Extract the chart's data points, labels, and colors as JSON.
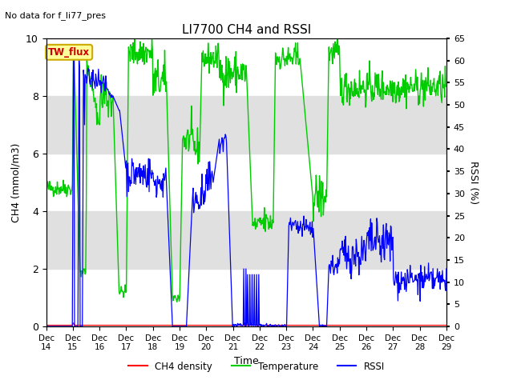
{
  "title": "LI7700 CH4 and RSSI",
  "subtitle": "No data for f_li77_pres",
  "xlabel": "Time",
  "ylabel_left": "CH4 (mmol/m3)",
  "ylabel_right": "RSSI (%)",
  "xlim": [
    0,
    15
  ],
  "ylim_left": [
    0,
    10
  ],
  "ylim_right": [
    0,
    65
  ],
  "yticks_left": [
    0,
    2,
    4,
    6,
    8,
    10
  ],
  "yticks_right": [
    0,
    5,
    10,
    15,
    20,
    25,
    30,
    35,
    40,
    45,
    50,
    55,
    60,
    65
  ],
  "xtick_labels": [
    "Dec 14",
    "Dec 15",
    "Dec 16",
    "Dec 17",
    "Dec 18",
    "Dec 19",
    "Dec 20",
    "Dec 21",
    "Dec 22",
    "Dec 23",
    "Dec 24",
    "Dec 25",
    "Dec 26",
    "Dec 27",
    "Dec 28",
    "Dec 29"
  ],
  "bg_band_color": "#e0e0e0",
  "legend_entries": [
    "CH4 density",
    "Temperature",
    "RSSI"
  ],
  "legend_colors": [
    "#ff0000",
    "#00cc00",
    "#0000ff"
  ],
  "tw_flux_label": "TW_flux",
  "tw_flux_bg": "#ffff99",
  "tw_flux_border": "#ccaa00",
  "tw_flux_text_color": "#cc0000"
}
